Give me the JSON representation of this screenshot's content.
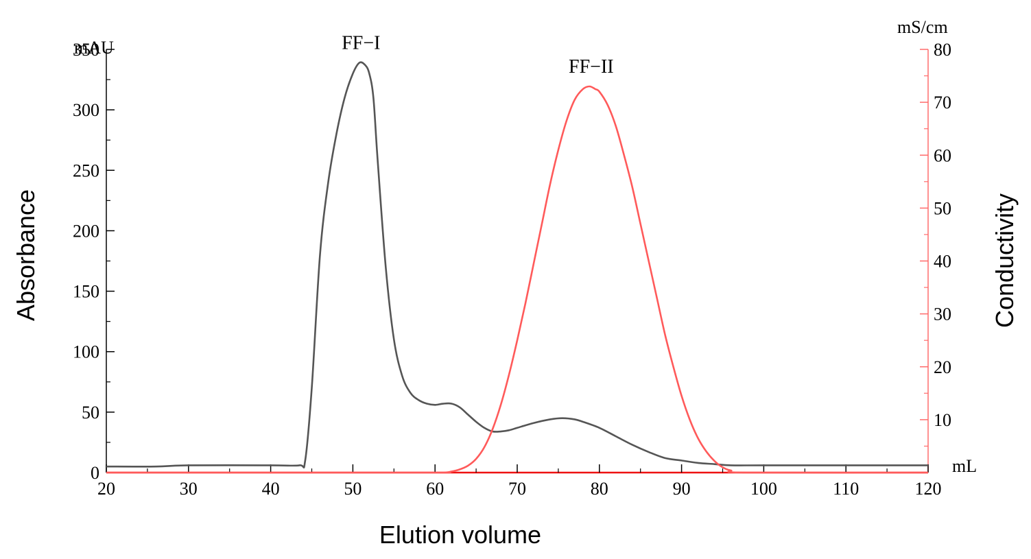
{
  "chart_data": {
    "type": "line",
    "xlabel": "Elution volume",
    "x_unit": "mL",
    "ylabel_left": "Absorbance",
    "y_unit_left": "mAU",
    "ylabel_right": "Conductivity",
    "y_unit_right": "mS/cm",
    "xlim": [
      20,
      120
    ],
    "ylim_left": [
      0,
      350
    ],
    "ylim_right": [
      0,
      80
    ],
    "x_ticks": [
      20,
      30,
      40,
      50,
      60,
      70,
      80,
      90,
      100,
      110,
      120
    ],
    "y_ticks_left": [
      0,
      50,
      100,
      150,
      200,
      250,
      300,
      350
    ],
    "y_ticks_right": [
      10,
      20,
      30,
      40,
      50,
      60,
      70,
      80
    ],
    "grid": false,
    "colors": {
      "absorbance": "#555555",
      "conductivity": "#ff5a5a",
      "right_axis": "#ff6b6b",
      "left_axis": "#000000"
    },
    "annotations": [
      {
        "text": "FF−I",
        "x": 51,
        "y": 339,
        "axis": "left"
      },
      {
        "text": "FF−II",
        "x": 79,
        "y": 73,
        "axis": "right"
      }
    ],
    "series": [
      {
        "axis": "left",
        "x": [
          20,
          26,
          30,
          40,
          43.5,
          44.2,
          45,
          46,
          47,
          48,
          49,
          50,
          50.8,
          51.5,
          52,
          52.5,
          53,
          54,
          55,
          56,
          57,
          58,
          59,
          60,
          61,
          62,
          63,
          64,
          65,
          66,
          67,
          68,
          69,
          70,
          72,
          74,
          75.5,
          77,
          78,
          80,
          82,
          84,
          86,
          88,
          90,
          92,
          94,
          96,
          100,
          110,
          120
        ],
        "y": [
          5,
          5,
          6,
          6,
          6,
          10,
          70,
          180,
          240,
          280,
          310,
          330,
          339,
          337,
          330,
          310,
          260,
          170,
          110,
          80,
          66,
          60,
          57,
          56,
          57,
          57,
          54,
          48,
          42,
          37,
          34,
          34,
          35,
          37,
          41,
          44,
          45,
          44,
          42,
          37,
          30,
          23,
          17,
          12,
          10,
          8,
          7,
          6,
          6,
          6,
          6
        ]
      },
      {
        "axis": "right",
        "x": [
          20,
          58,
          61,
          62,
          63,
          64,
          65,
          66,
          67,
          68,
          69,
          70,
          71,
          72,
          73,
          74,
          75,
          76,
          77,
          78,
          78.8,
          79.5,
          80,
          81,
          82,
          83,
          84,
          85,
          86,
          87,
          88,
          89,
          90,
          91,
          92,
          93,
          94,
          95,
          96,
          98,
          120
        ],
        "y": [
          0,
          0,
          0,
          0.2,
          0.6,
          1.3,
          2.6,
          4.8,
          8.2,
          12.8,
          18.5,
          25,
          32,
          39.5,
          47,
          54.5,
          61,
          66.5,
          70.5,
          72.5,
          73,
          72.5,
          72,
          69.5,
          65.5,
          60,
          54,
          47,
          40,
          33,
          26,
          20,
          14.5,
          10,
          6.5,
          4,
          2.2,
          1,
          0.4,
          0,
          0
        ]
      }
    ]
  }
}
